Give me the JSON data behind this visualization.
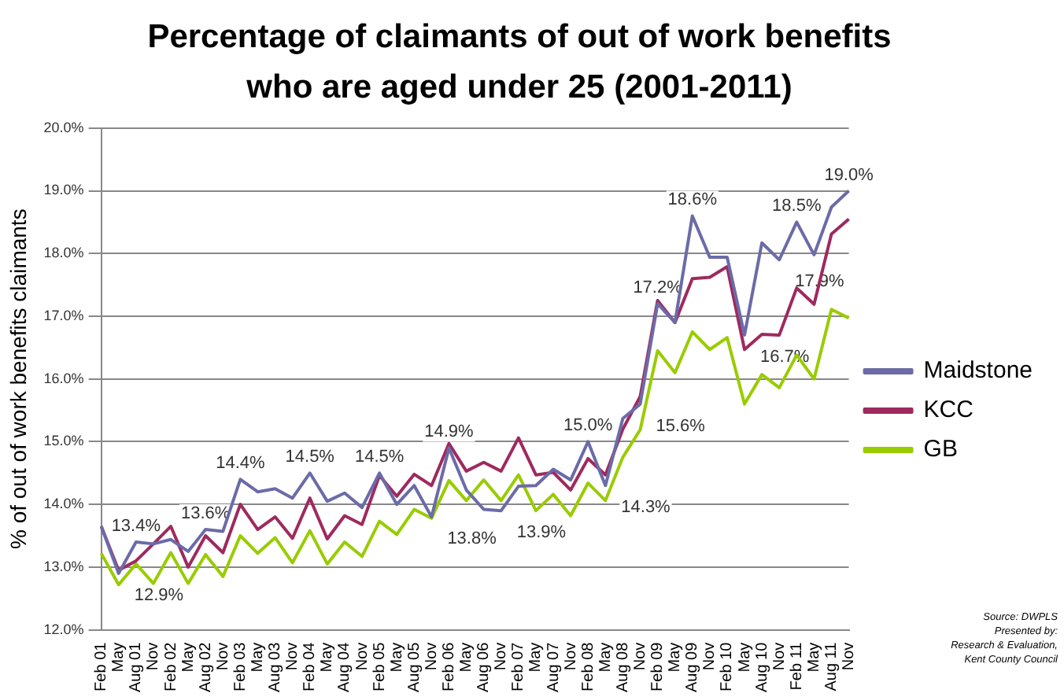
{
  "chart_data": {
    "type": "line",
    "title": "Percentage of claimants of out of work benefits who are aged under 25 (2001-2011)",
    "ylabel": "% of out of work benefits claimants",
    "categories": [
      "Feb 01",
      "May",
      "Aug 01",
      "Nov",
      "Feb 02",
      "May",
      "Aug 02",
      "Nov",
      "Feb 03",
      "May",
      "Aug 03",
      "Nov",
      "Feb 04",
      "May",
      "Aug 04",
      "Nov",
      "Feb 05",
      "May",
      "Aug 05",
      "Nov",
      "Feb 06",
      "May",
      "Aug 06",
      "Nov",
      "Feb 07",
      "May",
      "Aug 07",
      "Nov",
      "Feb 08",
      "May",
      "Aug 08",
      "Nov",
      "Feb 09",
      "May",
      "Aug 09",
      "Nov",
      "Feb 10",
      "May",
      "Aug 10",
      "Nov",
      "Feb 11",
      "May",
      "Aug 11",
      "Nov"
    ],
    "series": [
      {
        "name": "Maidstone",
        "color": "#6b6ba8",
        "values": [
          13.65,
          12.9,
          13.4,
          13.37,
          13.44,
          13.25,
          13.6,
          13.57,
          14.4,
          14.2,
          14.25,
          14.1,
          14.5,
          14.05,
          14.18,
          13.95,
          14.5,
          14.0,
          14.3,
          13.8,
          14.9,
          14.23,
          13.92,
          13.9,
          14.29,
          14.3,
          14.56,
          14.39,
          15.0,
          14.3,
          15.37,
          15.6,
          17.2,
          16.9,
          18.6,
          17.94,
          17.94,
          16.7,
          18.17,
          17.9,
          18.5,
          17.98,
          18.74,
          19.0
        ],
        "value_labels": [
          null,
          "12.9%",
          "13.4%",
          null,
          null,
          null,
          "13.6%",
          null,
          "14.4%",
          null,
          null,
          null,
          "14.5%",
          null,
          null,
          null,
          "14.5%",
          null,
          null,
          "13.8%",
          "14.9%",
          null,
          null,
          "13.9%",
          null,
          null,
          null,
          null,
          "15.0%",
          "14.3%",
          null,
          "15.6%",
          "17.2%",
          null,
          "18.6%",
          null,
          null,
          "16.7%",
          null,
          "17.9%",
          "18.5%",
          null,
          null,
          "19.0%"
        ]
      },
      {
        "name": "KCC",
        "color": "#9e2a5e",
        "values": [
          13.65,
          12.95,
          13.1,
          13.37,
          13.65,
          13.0,
          13.5,
          13.23,
          14.0,
          13.6,
          13.8,
          13.46,
          14.1,
          13.45,
          13.82,
          13.68,
          14.46,
          14.13,
          14.48,
          14.3,
          14.97,
          14.53,
          14.67,
          14.53,
          15.06,
          14.47,
          14.51,
          14.23,
          14.73,
          14.47,
          15.2,
          15.72,
          17.25,
          16.9,
          17.6,
          17.62,
          17.79,
          16.47,
          16.71,
          16.7,
          17.45,
          17.19,
          18.31,
          18.55
        ]
      },
      {
        "name": "GB",
        "color": "#99cc00",
        "values": [
          13.22,
          12.72,
          13.05,
          12.74,
          13.23,
          12.74,
          13.2,
          12.85,
          13.5,
          13.22,
          13.47,
          13.07,
          13.58,
          13.05,
          13.4,
          13.17,
          13.73,
          13.52,
          13.92,
          13.78,
          14.38,
          14.06,
          14.39,
          14.06,
          14.47,
          13.9,
          14.16,
          13.82,
          14.34,
          14.06,
          14.75,
          15.19,
          16.45,
          16.1,
          16.75,
          16.47,
          16.66,
          15.6,
          16.07,
          15.86,
          16.38,
          16.0,
          17.11,
          16.97
        ]
      }
    ],
    "ylim": [
      12,
      20
    ],
    "yticks": [
      {
        "value": 12,
        "label": "12.0%"
      },
      {
        "value": 13,
        "label": "13.0%"
      },
      {
        "value": 14,
        "label": "14.0%"
      },
      {
        "value": 15,
        "label": "15.0%"
      },
      {
        "value": 16,
        "label": "16.0%"
      },
      {
        "value": 17,
        "label": "17.0%"
      },
      {
        "value": 18,
        "label": "18.0%"
      },
      {
        "value": 19,
        "label": "19.0%"
      },
      {
        "value": 20,
        "label": "20.0%"
      }
    ],
    "grid": "y",
    "legend": "right",
    "marker": "none",
    "line_style": "solid",
    "annotations": [
      "Source: DWPLS",
      "Presented  by:",
      "Research & Evaluation,",
      "Kent County Council"
    ]
  }
}
